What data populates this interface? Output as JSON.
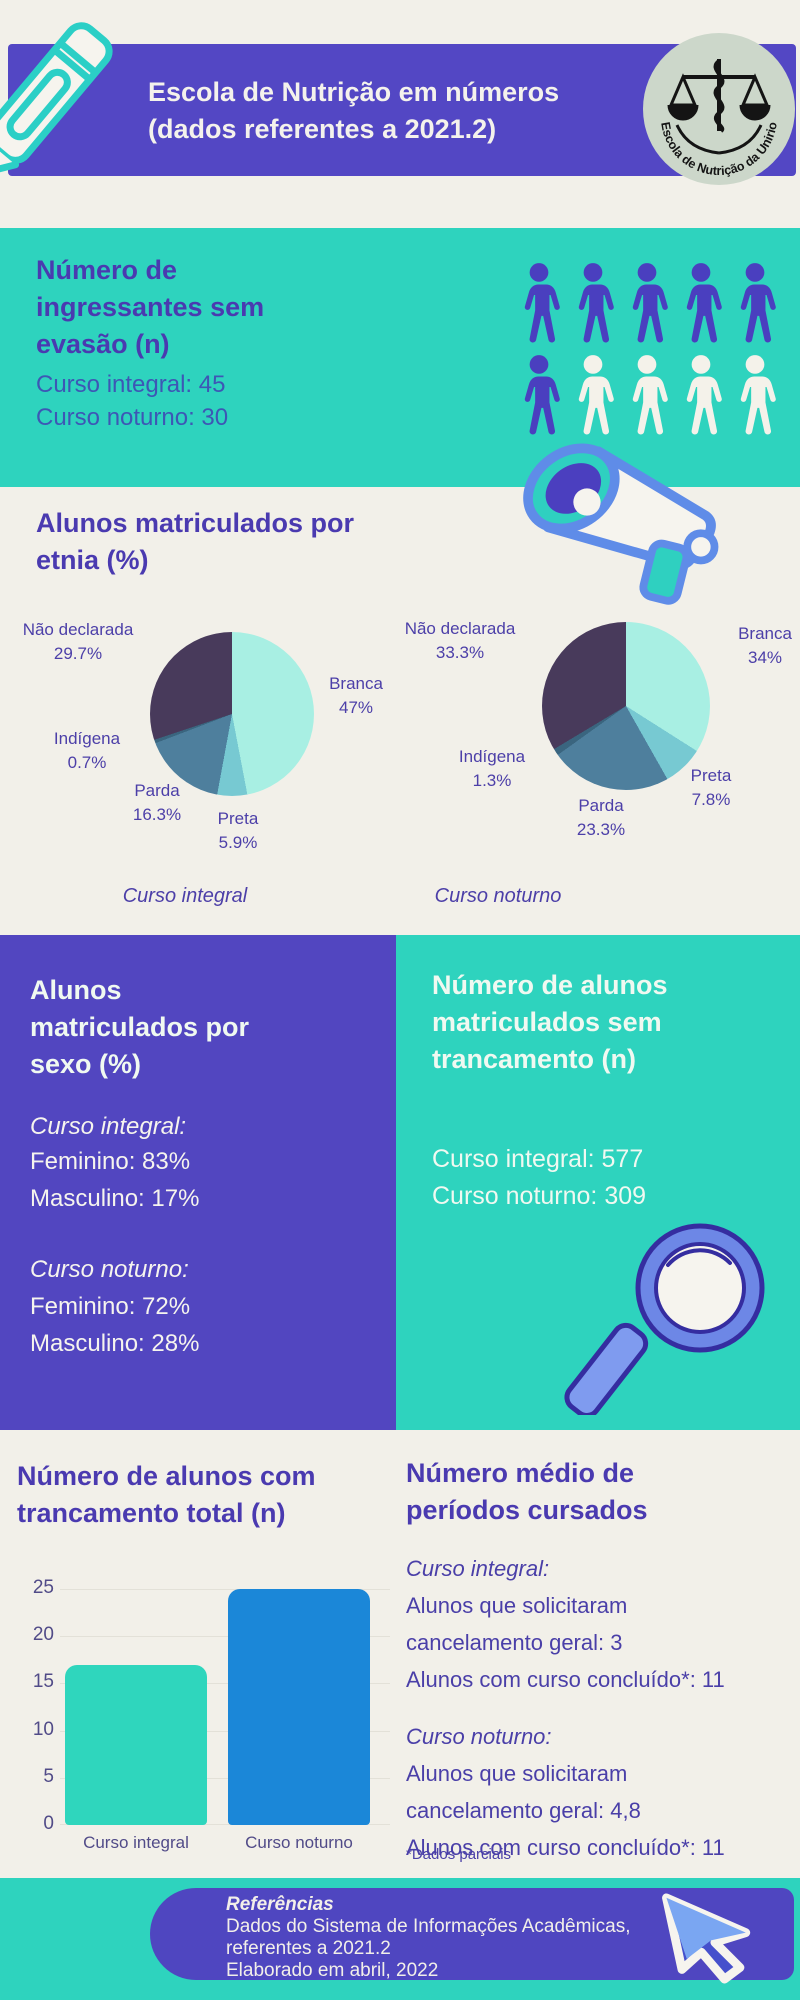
{
  "colors": {
    "background": "#f2f0e9",
    "purple_band": "#5347c4",
    "purple_panel": "#5246c0",
    "teal": "#2ed3be",
    "heading_purple": "#4a3ab0",
    "body_blue": "#3d57b5",
    "bar_integral": "#2fd6bd",
    "bar_noturno": "#1b87d8"
  },
  "icons": {
    "top_left": "pencil-icon",
    "top_right": "school-logo",
    "section1": "people-pictogram",
    "section2": "megaphone-icon",
    "section3": "magnifier-icon",
    "footer": "cursor-icon"
  },
  "header": {
    "title_line1": "Escola de Nutrição em números",
    "title_line2": "(dados referentes a 2021.2)",
    "logo_text": "Escola de Nutrição da Unirio"
  },
  "ingressantes": {
    "heading": "Número de ingressantes sem evasão (n)",
    "lines": [
      "Curso integral: 45",
      "Curso noturno: 30"
    ],
    "pictogram": {
      "rows": 2,
      "cols": 5,
      "filled_color": "#4a3fbf",
      "empty_color": "#f4f2ea",
      "units": [
        1,
        1,
        1,
        1,
        1,
        1,
        0,
        0,
        0,
        0
      ]
    }
  },
  "etnia": {
    "heading": "Alunos matriculados por etnia (%)"
  },
  "chart_data": [
    {
      "type": "pie",
      "title": "Curso integral",
      "slices": [
        {
          "label": "Branca",
          "pct": "47%",
          "value": 47,
          "color": "#a8efe3"
        },
        {
          "label": "Preta",
          "pct": "5.9%",
          "value": 5.9,
          "color": "#77c9d2"
        },
        {
          "label": "Parda",
          "pct": "16.3%",
          "value": 16.3,
          "color": "#4e7f9d"
        },
        {
          "label": "Indígena",
          "pct": "0.7%",
          "value": 0.7,
          "color": "#3a657f"
        },
        {
          "label": "Não declarada",
          "pct": "29.7%",
          "value": 29.7,
          "color": "#483a5b"
        }
      ]
    },
    {
      "type": "pie",
      "title": "Curso noturno",
      "slices": [
        {
          "label": "Branca",
          "pct": "34%",
          "value": 34,
          "color": "#a8efe3"
        },
        {
          "label": "Preta",
          "pct": "7.8%",
          "value": 7.8,
          "color": "#77c9d2"
        },
        {
          "label": "Parda",
          "pct": "23.3%",
          "value": 23.3,
          "color": "#4e7f9d"
        },
        {
          "label": "Indígena",
          "pct": "1.3%",
          "value": 1.3,
          "color": "#3a657f"
        },
        {
          "label": "Não declarada",
          "pct": "33.3%",
          "value": 33.3,
          "color": "#483a5b"
        }
      ]
    },
    {
      "type": "bar",
      "title": "Número de alunos com trancamento total (n)",
      "categories": [
        "Curso integral",
        "Curso noturno"
      ],
      "values": [
        17,
        25
      ],
      "colors": [
        "#2fd6bd",
        "#1b87d8"
      ],
      "xlabel": "",
      "ylabel": "",
      "ylim": [
        0,
        25
      ],
      "yticks": [
        0,
        5,
        10,
        15,
        20,
        25
      ],
      "grid": true,
      "legend": "none"
    }
  ],
  "sexo": {
    "heading": "Alunos matriculados por sexo (%)",
    "groups": [
      {
        "title": "Curso integral:",
        "lines": [
          "Feminino: 83%",
          "Masculino: 17%"
        ]
      },
      {
        "title": "Curso noturno:",
        "lines": [
          "Feminino: 72%",
          "Masculino: 28%"
        ]
      }
    ]
  },
  "trancamento": {
    "heading": "Número de alunos matriculados sem trancamento (n)",
    "lines": [
      "Curso integral: 577",
      "Curso noturno: 309"
    ]
  },
  "periodos": {
    "heading": "Número médio de períodos cursados",
    "groups": [
      {
        "title": "Curso integral:",
        "lines": [
          "Alunos que solicitaram",
          "cancelamento geral: 3",
          "Alunos com curso concluído*: 11"
        ]
      },
      {
        "title": "Curso noturno:",
        "lines": [
          "Alunos que solicitaram",
          "cancelamento geral: 4,8",
          "Alunos com curso concluído*: 11"
        ]
      }
    ],
    "footnote": "*Dados parciais"
  },
  "footer": {
    "title": "Referências",
    "lines": [
      "Dados do Sistema de Informações Acadêmicas,",
      "referentes a 2021.2",
      "Elaborado em abril, 2022"
    ]
  }
}
